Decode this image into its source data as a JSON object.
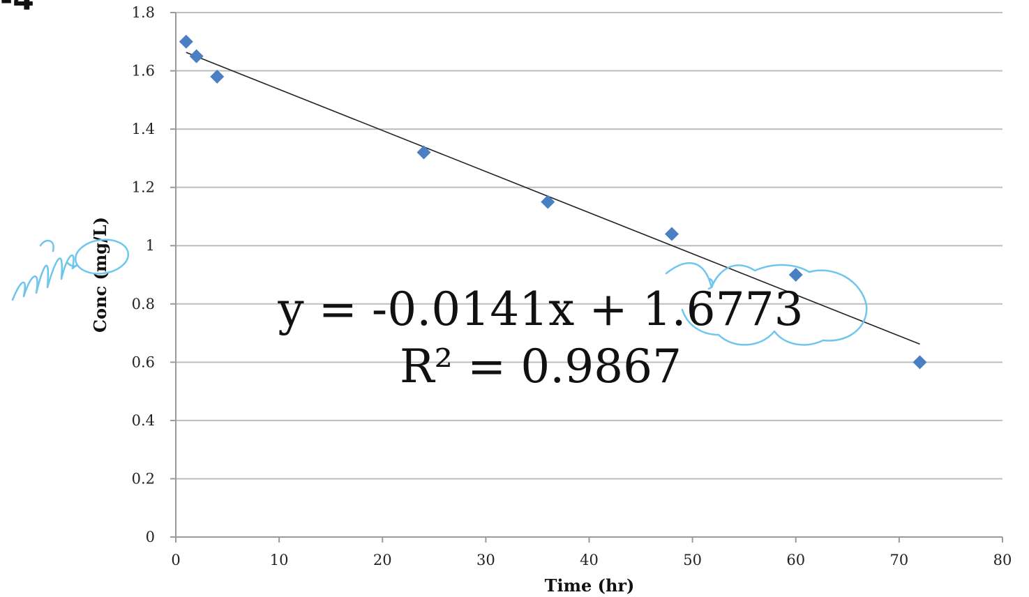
{
  "corner_label": "-4",
  "chart_data": {
    "type": "scatter",
    "xlabel": "Time (hr)",
    "ylabel": "Conc (mg/L)",
    "xlim": [
      0,
      80
    ],
    "ylim": [
      0,
      1.8
    ],
    "x_ticks": [
      "0",
      "10",
      "20",
      "30",
      "40",
      "50",
      "60",
      "70",
      "80"
    ],
    "y_ticks": [
      "0",
      "0.2",
      "0.4",
      "0.6",
      "0.8",
      "1",
      "1.2",
      "1.4",
      "1.6",
      "1.8"
    ],
    "grid": true,
    "marker_color": "#4a7fc4",
    "series": [
      {
        "x": [
          1,
          2,
          4,
          24,
          36,
          48,
          60,
          72
        ],
        "y": [
          1.7,
          1.65,
          1.58,
          1.32,
          1.15,
          1.04,
          0.9,
          0.6
        ]
      }
    ],
    "trendline": {
      "slope": -0.0141,
      "intercept": 1.6773,
      "x_range": [
        1,
        72
      ]
    },
    "annotations": [
      "y = -0.0141x + 1.6773",
      "R² = 0.9867"
    ]
  }
}
